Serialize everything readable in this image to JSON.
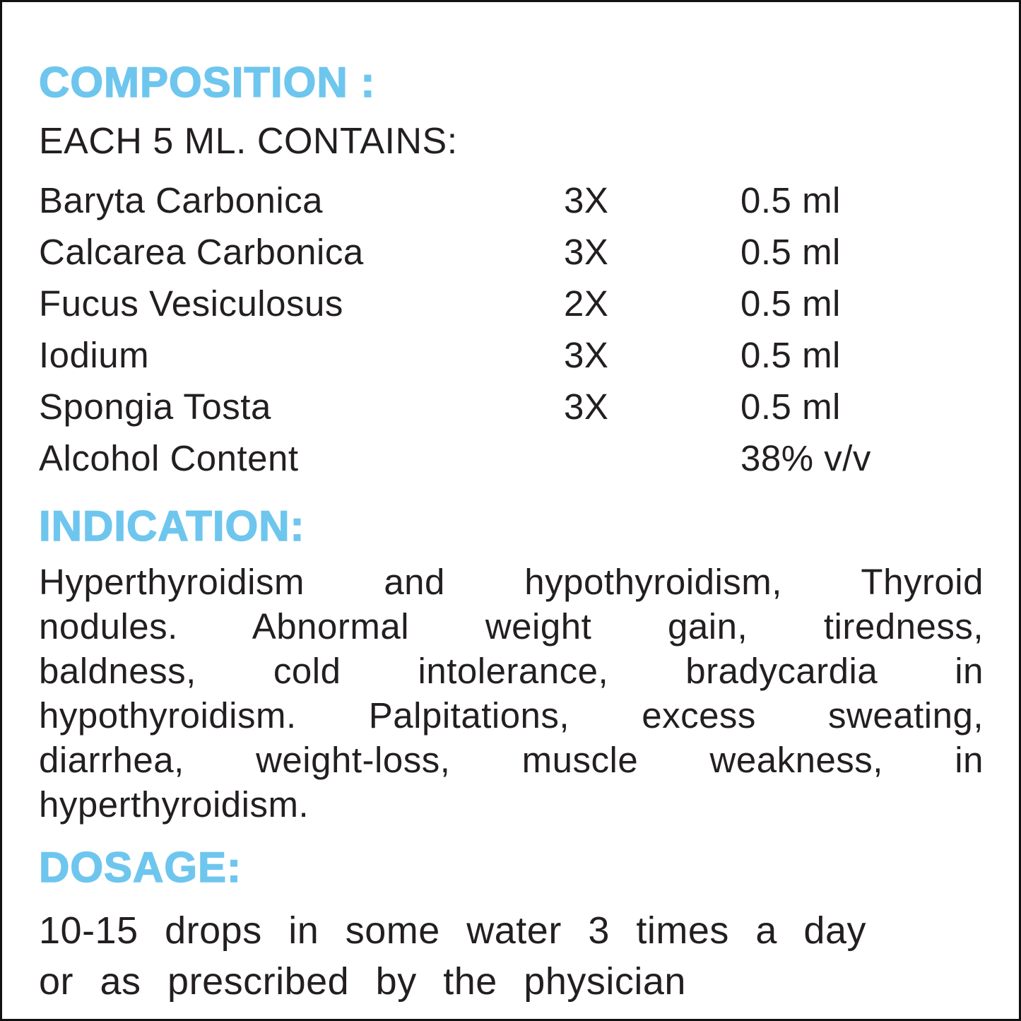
{
  "page": {
    "accent_color": "#6ec6ee",
    "text_color": "#231f20",
    "border_color": "#111111"
  },
  "composition": {
    "heading": "COMPOSITION :",
    "subheading": "EACH 5 ML. CONTAINS:",
    "rows": [
      {
        "name": "Baryta Carbonica",
        "potency": "3X",
        "quantity": "0.5 ml"
      },
      {
        "name": "Calcarea Carbonica",
        "potency": "3X",
        "quantity": "0.5 ml"
      },
      {
        "name": "Fucus Vesiculosus",
        "potency": "2X",
        "quantity": "0.5 ml"
      },
      {
        "name": "Iodium",
        "potency": "3X",
        "quantity": "0.5 ml"
      },
      {
        "name": "Spongia Tosta",
        "potency": "3X",
        "quantity": "0.5 ml"
      },
      {
        "name": "Alcohol Content",
        "potency": "",
        "quantity": "38% v/v"
      }
    ]
  },
  "indication": {
    "heading": "INDICATION:",
    "lines": [
      "Hyperthyroidism and hypothyroidism, Thyroid",
      "nodules. Abnormal weight gain, tiredness,",
      "baldness, cold intolerance, bradycardia in",
      "hypothyroidism. Palpitations, excess sweating,",
      "diarrhea, weight-loss, muscle weakness, in",
      "hyperthyroidism."
    ]
  },
  "dosage": {
    "heading": "DOSAGE:",
    "lines": [
      "10-15 drops in some water 3 times a day",
      "or as prescribed by the physician"
    ]
  }
}
